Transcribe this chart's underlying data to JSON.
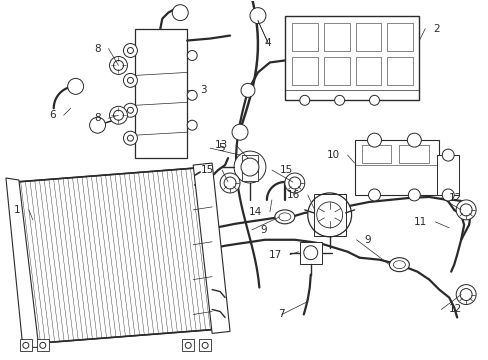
{
  "bg_color": "#ffffff",
  "line_color": "#2a2a2a",
  "label_color": "#000000",
  "lw_main": 1.0,
  "lw_hose": 1.6,
  "lw_thin": 0.5,
  "font_size": 7.5
}
